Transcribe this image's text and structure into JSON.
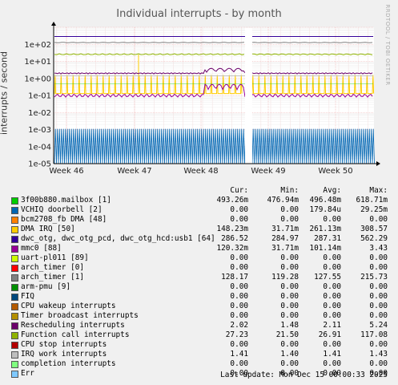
{
  "chart_data": {
    "type": "line",
    "title": "Individual interrupts - by month",
    "ylabel": "interrupts / second",
    "watermark": "RRDTOOL / TOBI OETIKER",
    "yscale": "log",
    "ylim": [
      1e-05,
      1000
    ],
    "y_ticks": [
      "1e-05",
      "1e-04",
      "1e-03",
      "1e-02",
      "1e-01",
      "1e+00",
      "1e+01",
      "1e+02"
    ],
    "x_ticks": [
      "Week 46",
      "Week 47",
      "Week 48",
      "Week 49",
      "Week 50"
    ],
    "gap_before_week": "Week 49",
    "columns": {
      "cur": "Cur:",
      "min": "Min:",
      "avg": "Avg:",
      "max": "Max:"
    },
    "series": [
      {
        "name": "3f00b880.mailbox [1]",
        "color": "#00cc00",
        "cur": "493.26m",
        "min": "476.94m",
        "avg": "496.48m",
        "max": "618.71m"
      },
      {
        "name": "VCHIQ doorbell [2]",
        "color": "#0066b3",
        "cur": "0.00",
        "min": "0.00",
        "avg": "179.84u",
        "max": "29.25m"
      },
      {
        "name": "bcm2708_fb DMA [48]",
        "color": "#ff8000",
        "cur": "0.00",
        "min": "0.00",
        "avg": "0.00",
        "max": "0.00"
      },
      {
        "name": "DMA IRQ [50]",
        "color": "#ffcc00",
        "cur": "148.23m",
        "min": "31.71m",
        "avg": "261.13m",
        "max": "308.57"
      },
      {
        "name": "dwc_otg, dwc_otg_pcd, dwc_otg_hcd:usb1 [64]",
        "color": "#330099",
        "cur": "286.52",
        "min": "284.97",
        "avg": "287.31",
        "max": "562.29"
      },
      {
        "name": "mmc0 [88]",
        "color": "#990099",
        "cur": "120.32m",
        "min": "31.71m",
        "avg": "101.14m",
        "max": "3.43"
      },
      {
        "name": "uart-pl011 [89]",
        "color": "#ccff00",
        "cur": "0.00",
        "min": "0.00",
        "avg": "0.00",
        "max": "0.00"
      },
      {
        "name": "arch_timer [0]",
        "color": "#ff0000",
        "cur": "0.00",
        "min": "0.00",
        "avg": "0.00",
        "max": "0.00"
      },
      {
        "name": "arch_timer [1]",
        "color": "#808080",
        "cur": "128.17",
        "min": "119.28",
        "avg": "127.55",
        "max": "215.73"
      },
      {
        "name": "arm-pmu [9]",
        "color": "#008f00",
        "cur": "0.00",
        "min": "0.00",
        "avg": "0.00",
        "max": "0.00"
      },
      {
        "name": "FIQ",
        "color": "#00487d",
        "cur": "0.00",
        "min": "0.00",
        "avg": "0.00",
        "max": "0.00"
      },
      {
        "name": "CPU wakeup interrupts",
        "color": "#b35a00",
        "cur": "0.00",
        "min": "0.00",
        "avg": "0.00",
        "max": "0.00"
      },
      {
        "name": "Timer broadcast interrupts",
        "color": "#b38f00",
        "cur": "0.00",
        "min": "0.00",
        "avg": "0.00",
        "max": "0.00"
      },
      {
        "name": "Rescheduling interrupts",
        "color": "#6b006b",
        "cur": "2.02",
        "min": "1.48",
        "avg": "2.11",
        "max": "5.24"
      },
      {
        "name": "Function call interrupts",
        "color": "#8fb300",
        "cur": "27.23",
        "min": "21.50",
        "avg": "26.91",
        "max": "117.08"
      },
      {
        "name": "CPU stop interrupts",
        "color": "#b30000",
        "cur": "0.00",
        "min": "0.00",
        "avg": "0.00",
        "max": "0.00"
      },
      {
        "name": "IRQ work interrupts",
        "color": "#bebebe",
        "cur": "1.41",
        "min": "1.40",
        "avg": "1.41",
        "max": "1.43"
      },
      {
        "name": "completion interrupts",
        "color": "#80ff80",
        "cur": "0.00",
        "min": "0.00",
        "avg": "0.00",
        "max": "0.00"
      },
      {
        "name": "Err",
        "color": "#80c9ff",
        "cur": "0.00",
        "min": "0.00",
        "avg": "0.00",
        "max": "0.00"
      }
    ]
  },
  "footer": {
    "last_update": "Last update: Mon Dec 15 00:00:33 2025"
  }
}
